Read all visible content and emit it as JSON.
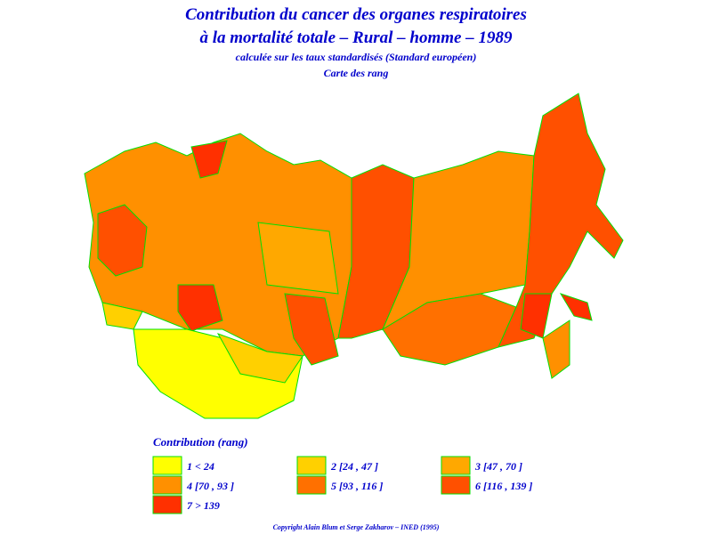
{
  "header": {
    "title_lines": [
      "Contribution du cancer des organes respiratoires",
      "à la mortalité totale  –  Rural  –  homme  –  1989"
    ],
    "subtitle": "calculée sur les taux standardisés (Standard européen)",
    "map_caption": "Carte des rang"
  },
  "legend": {
    "title": "Contribution  (rang)",
    "items": [
      {
        "label": "1   <   24",
        "color": "#ffff00"
      },
      {
        "label": "2  [24  ,  47 ]",
        "color": "#ffd000"
      },
      {
        "label": "3  [47  ,  70 ]",
        "color": "#ffa800"
      },
      {
        "label": "4  [70  ,  93 ]",
        "color": "#ff9000"
      },
      {
        "label": "5  [93  ,  116 ]",
        "color": "#ff7000"
      },
      {
        "label": "6  [116  ,  139 ]",
        "color": "#ff5000"
      },
      {
        "label": "7   >   139",
        "color": "#ff3000"
      }
    ]
  },
  "footer": {
    "copyright": "Copyright  Alain  Blum  et  Serge  Zakharov  –  INED  (1995)"
  }
}
